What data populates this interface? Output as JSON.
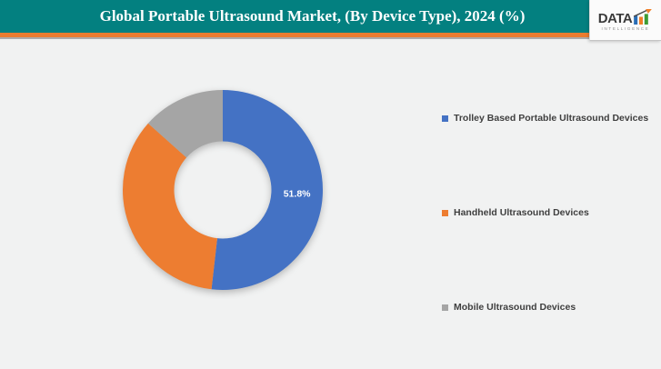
{
  "header": {
    "title": "Global Portable Ultrasound Market, (By Device Type), 2024 (%)",
    "bar_color": "#038080",
    "stripe_color": "#E97C30",
    "logo": {
      "text": "DATA",
      "subtext": "INTELLIGENCE",
      "bar_colors": [
        "#2A6DB5",
        "#F07E26",
        "#3E9C35"
      ],
      "arrow_color": "#4A4A4A",
      "arrowhead_color": "#F07E26"
    }
  },
  "chart_data": {
    "type": "pie",
    "donut": true,
    "title": "Global Portable Ultrasound Market, (By Device Type), 2024 (%)",
    "legend_position": "right",
    "start_angle_deg": 0,
    "direction": "clockwise",
    "series": [
      {
        "name": "Trolley Based Portable Ultrasound Devices",
        "value": 51.8,
        "color": "#4472C4",
        "label": "51.8%"
      },
      {
        "name": "Handheld Ultrasound Devices",
        "value": 34.8,
        "color": "#ED7D31",
        "label": ""
      },
      {
        "name": "Mobile Ultrasound Devices",
        "value": 13.4,
        "color": "#A5A5A5",
        "label": ""
      }
    ],
    "data_label_color": "#FFFFFF",
    "background_color": "#F1F2F2"
  }
}
